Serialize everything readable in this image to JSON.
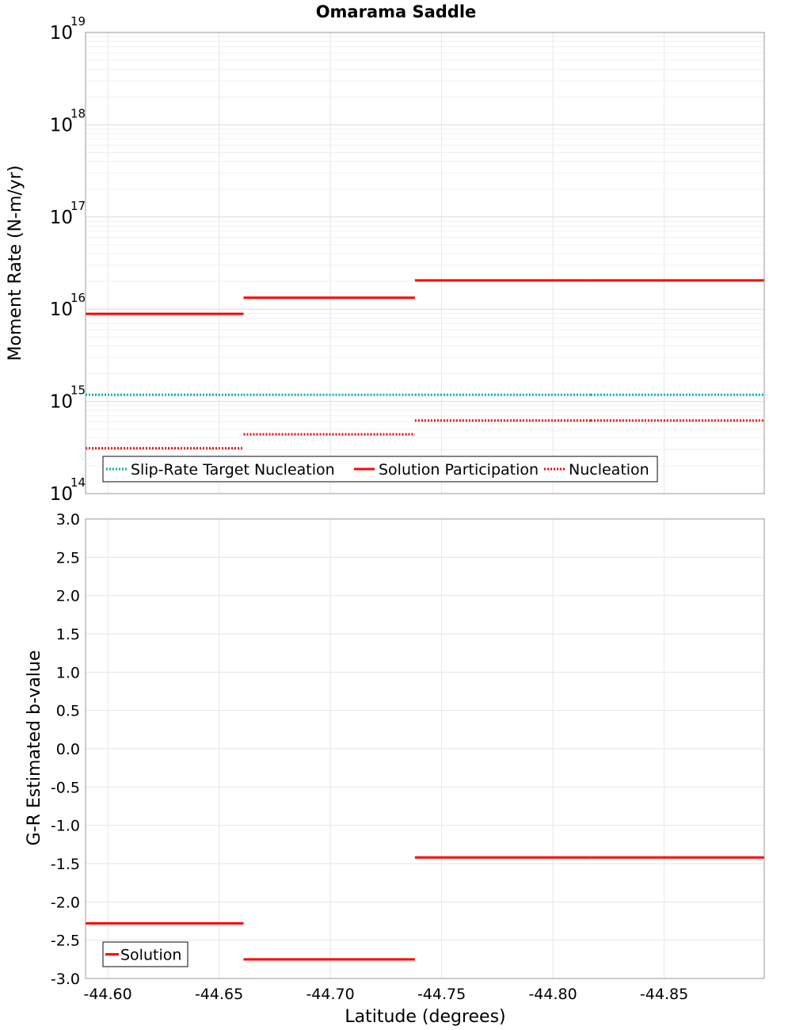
{
  "chart_data": [
    {
      "type": "line",
      "title": "Omarama Saddle",
      "xlabel": "",
      "ylabel": "Moment Rate (N-m/yr)",
      "yscale": "log",
      "xlim": [
        -44.59,
        -44.895
      ],
      "ylim": [
        100000000000000.0,
        1e+19
      ],
      "xticks": [
        -44.6,
        -44.65,
        -44.7,
        -44.75,
        -44.8,
        -44.85
      ],
      "yticks": [
        {
          "base": "10",
          "exp": "14",
          "value": 100000000000000.0
        },
        {
          "base": "10",
          "exp": "15",
          "value": 1000000000000000.0
        },
        {
          "base": "10",
          "exp": "16",
          "value": 1e+16
        },
        {
          "base": "10",
          "exp": "17",
          "value": 1e+17
        },
        {
          "base": "10",
          "exp": "18",
          "value": 1e+18
        },
        {
          "base": "10",
          "exp": "19",
          "value": 1e+19
        }
      ],
      "grid": true,
      "legend_position": "bottom-left",
      "series": [
        {
          "name": "Slip-Rate Target Nucleation",
          "color": "#00b2b2",
          "style": "dotted",
          "segments": [
            {
              "x0": -44.59,
              "x1": -44.661,
              "y": 1180000000000000.0
            },
            {
              "x0": -44.661,
              "x1": -44.738,
              "y": 1180000000000000.0
            },
            {
              "x0": -44.738,
              "x1": -44.817,
              "y": 1180000000000000.0
            },
            {
              "x0": -44.817,
              "x1": -44.895,
              "y": 1180000000000000.0
            }
          ]
        },
        {
          "name": "Solution Participation",
          "color": "#ff0000",
          "style": "solid",
          "segments": [
            {
              "x0": -44.59,
              "x1": -44.661,
              "y": 8900000000000000.0
            },
            {
              "x0": -44.661,
              "x1": -44.738,
              "y": 1.33e+16
            },
            {
              "x0": -44.738,
              "x1": -44.817,
              "y": 2.05e+16
            },
            {
              "x0": -44.817,
              "x1": -44.895,
              "y": 2.05e+16
            }
          ]
        },
        {
          "name": "Nucleation",
          "color": "#ff0000",
          "style": "dotted",
          "segments": [
            {
              "x0": -44.59,
              "x1": -44.661,
              "y": 310000000000000.0
            },
            {
              "x0": -44.661,
              "x1": -44.738,
              "y": 440000000000000.0
            },
            {
              "x0": -44.738,
              "x1": -44.817,
              "y": 620000000000000.0
            },
            {
              "x0": -44.817,
              "x1": -44.895,
              "y": 620000000000000.0
            }
          ]
        }
      ]
    },
    {
      "type": "line",
      "title": "",
      "xlabel": "Latitude (degrees)",
      "ylabel": "G-R Estimated b-value",
      "xlim": [
        -44.59,
        -44.895
      ],
      "ylim": [
        -3.0,
        3.0
      ],
      "xticks": [
        -44.6,
        -44.65,
        -44.7,
        -44.75,
        -44.8,
        -44.85
      ],
      "xtick_labels": [
        "-44.60",
        "-44.65",
        "-44.70",
        "-44.75",
        "-44.80",
        "-44.85"
      ],
      "yticks": [
        3.0,
        2.5,
        2.0,
        1.5,
        1.0,
        0.5,
        0.0,
        -0.5,
        -1.0,
        -1.5,
        -2.0,
        -2.5,
        -3.0
      ],
      "ytick_labels": [
        "3.0",
        "2.5",
        "2.0",
        "1.5",
        "1.0",
        "0.5",
        "0.0",
        "-0.5",
        "-1.0",
        "-1.5",
        "-2.0",
        "-2.5",
        "-3.0"
      ],
      "grid": true,
      "legend_position": "bottom-left",
      "series": [
        {
          "name": "Solution",
          "color": "#ff0000",
          "style": "solid",
          "segments": [
            {
              "x0": -44.59,
              "x1": -44.661,
              "y": -2.28
            },
            {
              "x0": -44.661,
              "x1": -44.738,
              "y": -2.75
            },
            {
              "x0": -44.738,
              "x1": -44.817,
              "y": -1.42
            },
            {
              "x0": -44.817,
              "x1": -44.895,
              "y": -1.42
            }
          ]
        }
      ]
    }
  ]
}
